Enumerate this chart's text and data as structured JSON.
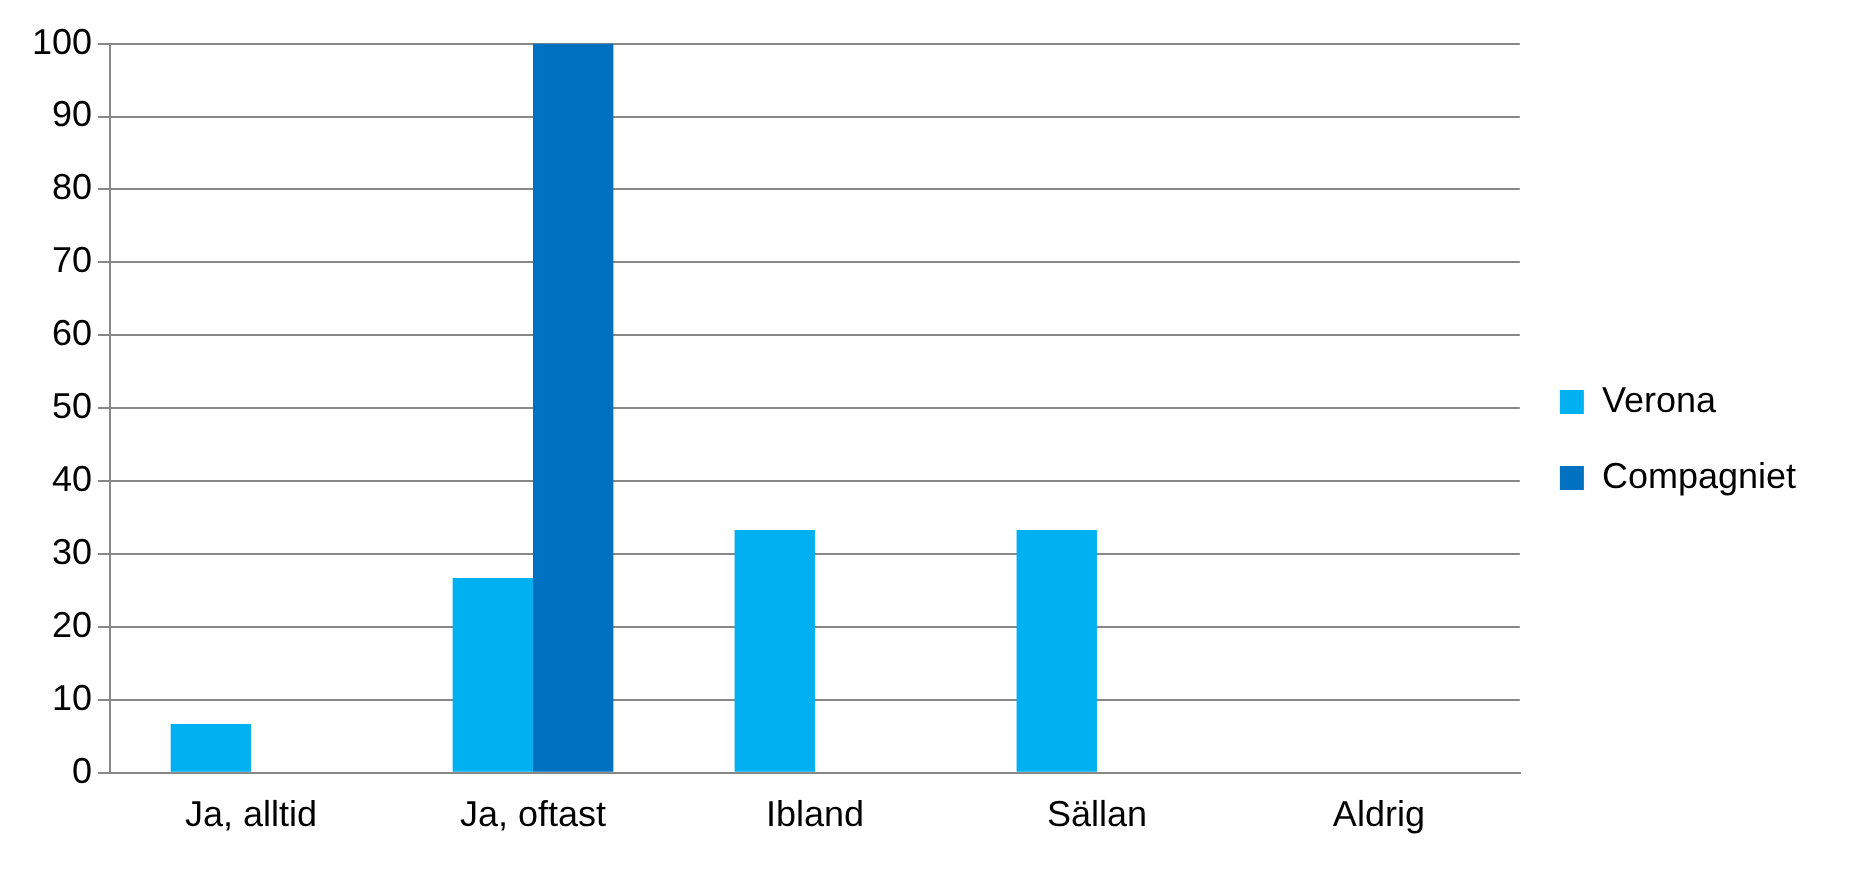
{
  "chart_data": {
    "type": "bar",
    "categories": [
      "Ja, alltid",
      "Ja, oftast",
      "Ibland",
      "Sällan",
      "Aldrig"
    ],
    "series": [
      {
        "name": "Verona",
        "color": "#00b0f0",
        "values": [
          6.7,
          26.7,
          33.3,
          33.3,
          0
        ]
      },
      {
        "name": "Compagniet",
        "color": "#0070c0",
        "values": [
          0,
          100,
          0,
          0,
          0
        ]
      }
    ],
    "ylim": [
      0,
      100
    ],
    "yticks": [
      0,
      10,
      20,
      30,
      40,
      50,
      60,
      70,
      80,
      90,
      100
    ],
    "grid": "y",
    "legend": "right"
  }
}
